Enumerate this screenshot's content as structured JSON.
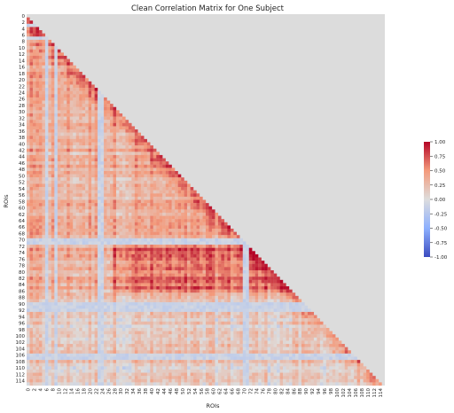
{
  "chart_data": {
    "type": "heatmap",
    "title": "Clean Correlation Matrix for One Subject",
    "xlabel": "ROIs",
    "ylabel": "ROIs",
    "n": 116,
    "mask": "upper-triangle",
    "mask_color": "#dcdcdc",
    "colormap": "coolwarm",
    "vmin": -1.0,
    "vmax": 1.0,
    "tick_step": 2,
    "colorbar_ticks": [
      "1.00",
      "0.75",
      "0.50",
      "0.25",
      "0.00",
      "-0.25",
      "-0.50",
      "-0.75",
      "-1.00"
    ],
    "value_pattern": {
      "base": 0.35,
      "near_diagonal_boost": 0.4,
      "strong_block": {
        "rows": [
          72,
          86
        ],
        "cols": [
          28,
          86
        ],
        "value": 0.62
      },
      "weak_rows": [
        3,
        7,
        70,
        71,
        90,
        91,
        92,
        106,
        107
      ],
      "weak_cols": [
        6,
        9,
        23,
        24,
        70,
        71
      ],
      "weak_value": -0.2,
      "lower_region_value": 0.12
    }
  }
}
